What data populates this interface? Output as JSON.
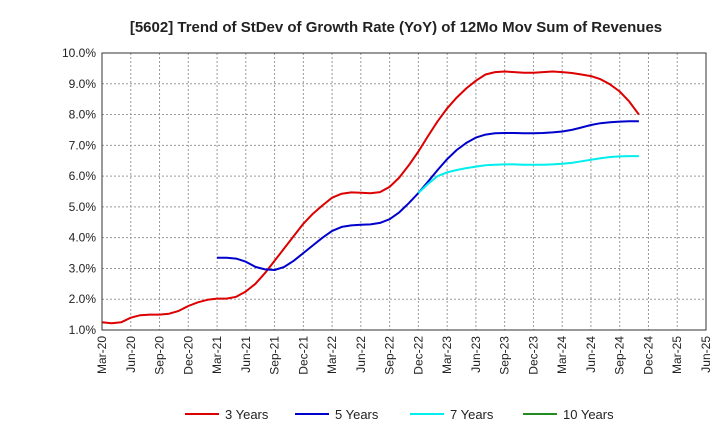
{
  "chart_data": {
    "type": "line",
    "title": "[5602]  Trend of StDev of Growth Rate (YoY) of 12Mo Mov Sum of Revenues",
    "xlabel": "",
    "ylabel": "",
    "ylim": [
      1.0,
      10.0
    ],
    "y_ticks": [
      "1.0%",
      "2.0%",
      "3.0%",
      "4.0%",
      "5.0%",
      "6.0%",
      "7.0%",
      "8.0%",
      "9.0%",
      "10.0%"
    ],
    "x_ticks": [
      "Mar-20",
      "Jun-20",
      "Sep-20",
      "Dec-20",
      "Mar-21",
      "Jun-21",
      "Sep-21",
      "Dec-21",
      "Mar-22",
      "Jun-22",
      "Sep-22",
      "Dec-22",
      "Mar-23",
      "Jun-23",
      "Sep-23",
      "Dec-23",
      "Mar-24",
      "Jun-24",
      "Sep-24",
      "Dec-24",
      "Mar-25",
      "Jun-25"
    ],
    "x_range_months": [
      0,
      63
    ],
    "series": [
      {
        "name": "3 Years",
        "color": "#dd0000",
        "points": [
          [
            0,
            1.25
          ],
          [
            1,
            1.22
          ],
          [
            2,
            1.25
          ],
          [
            3,
            1.4
          ],
          [
            4,
            1.48
          ],
          [
            5,
            1.5
          ],
          [
            6,
            1.5
          ],
          [
            7,
            1.53
          ],
          [
            8,
            1.62
          ],
          [
            9,
            1.78
          ],
          [
            10,
            1.9
          ],
          [
            11,
            1.98
          ],
          [
            12,
            2.02
          ],
          [
            13,
            2.02
          ],
          [
            14,
            2.08
          ],
          [
            15,
            2.25
          ],
          [
            16,
            2.5
          ],
          [
            17,
            2.85
          ],
          [
            18,
            3.25
          ],
          [
            19,
            3.65
          ],
          [
            20,
            4.05
          ],
          [
            21,
            4.45
          ],
          [
            22,
            4.78
          ],
          [
            23,
            5.05
          ],
          [
            24,
            5.3
          ],
          [
            25,
            5.43
          ],
          [
            26,
            5.47
          ],
          [
            27,
            5.46
          ],
          [
            28,
            5.44
          ],
          [
            29,
            5.48
          ],
          [
            30,
            5.65
          ],
          [
            31,
            5.95
          ],
          [
            32,
            6.35
          ],
          [
            33,
            6.8
          ],
          [
            34,
            7.3
          ],
          [
            35,
            7.78
          ],
          [
            36,
            8.2
          ],
          [
            37,
            8.55
          ],
          [
            38,
            8.85
          ],
          [
            39,
            9.1
          ],
          [
            40,
            9.3
          ],
          [
            41,
            9.38
          ],
          [
            42,
            9.4
          ],
          [
            43,
            9.38
          ],
          [
            44,
            9.36
          ],
          [
            45,
            9.36
          ],
          [
            46,
            9.38
          ],
          [
            47,
            9.4
          ],
          [
            48,
            9.38
          ],
          [
            49,
            9.35
          ],
          [
            50,
            9.3
          ],
          [
            51,
            9.25
          ],
          [
            52,
            9.15
          ],
          [
            53,
            8.98
          ],
          [
            54,
            8.75
          ],
          [
            55,
            8.42
          ],
          [
            56,
            8.0
          ]
        ]
      },
      {
        "name": "5 Years",
        "color": "#0000cc",
        "points": [
          [
            12,
            3.35
          ],
          [
            13,
            3.35
          ],
          [
            14,
            3.32
          ],
          [
            15,
            3.22
          ],
          [
            16,
            3.05
          ],
          [
            17,
            2.97
          ],
          [
            18,
            2.95
          ],
          [
            19,
            3.05
          ],
          [
            20,
            3.25
          ],
          [
            21,
            3.5
          ],
          [
            22,
            3.75
          ],
          [
            23,
            4.0
          ],
          [
            24,
            4.22
          ],
          [
            25,
            4.35
          ],
          [
            26,
            4.4
          ],
          [
            27,
            4.42
          ],
          [
            28,
            4.43
          ],
          [
            29,
            4.48
          ],
          [
            30,
            4.6
          ],
          [
            31,
            4.82
          ],
          [
            32,
            5.12
          ],
          [
            33,
            5.45
          ],
          [
            34,
            5.82
          ],
          [
            35,
            6.2
          ],
          [
            36,
            6.55
          ],
          [
            37,
            6.85
          ],
          [
            38,
            7.08
          ],
          [
            39,
            7.25
          ],
          [
            40,
            7.35
          ],
          [
            41,
            7.39
          ],
          [
            42,
            7.4
          ],
          [
            43,
            7.4
          ],
          [
            44,
            7.39
          ],
          [
            45,
            7.39
          ],
          [
            46,
            7.4
          ],
          [
            47,
            7.42
          ],
          [
            48,
            7.45
          ],
          [
            49,
            7.5
          ],
          [
            50,
            7.58
          ],
          [
            51,
            7.66
          ],
          [
            52,
            7.72
          ],
          [
            53,
            7.75
          ],
          [
            54,
            7.77
          ],
          [
            55,
            7.78
          ],
          [
            56,
            7.78
          ]
        ]
      },
      {
        "name": "7 Years",
        "color": "#00eeee",
        "points": [
          [
            33,
            5.45
          ],
          [
            34,
            5.75
          ],
          [
            35,
            6.0
          ],
          [
            36,
            6.12
          ],
          [
            37,
            6.2
          ],
          [
            38,
            6.26
          ],
          [
            39,
            6.31
          ],
          [
            40,
            6.35
          ],
          [
            41,
            6.37
          ],
          [
            42,
            6.38
          ],
          [
            43,
            6.38
          ],
          [
            44,
            6.37
          ],
          [
            45,
            6.37
          ],
          [
            46,
            6.37
          ],
          [
            47,
            6.38
          ],
          [
            48,
            6.4
          ],
          [
            49,
            6.43
          ],
          [
            50,
            6.48
          ],
          [
            51,
            6.53
          ],
          [
            52,
            6.58
          ],
          [
            53,
            6.62
          ],
          [
            54,
            6.64
          ],
          [
            55,
            6.65
          ],
          [
            56,
            6.65
          ]
        ]
      },
      {
        "name": "10 Years",
        "color": "#228b22",
        "points": []
      }
    ],
    "legend": [
      "3 Years",
      "5 Years",
      "7 Years",
      "10 Years"
    ],
    "legend_placement": "bottom",
    "grid": true
  }
}
